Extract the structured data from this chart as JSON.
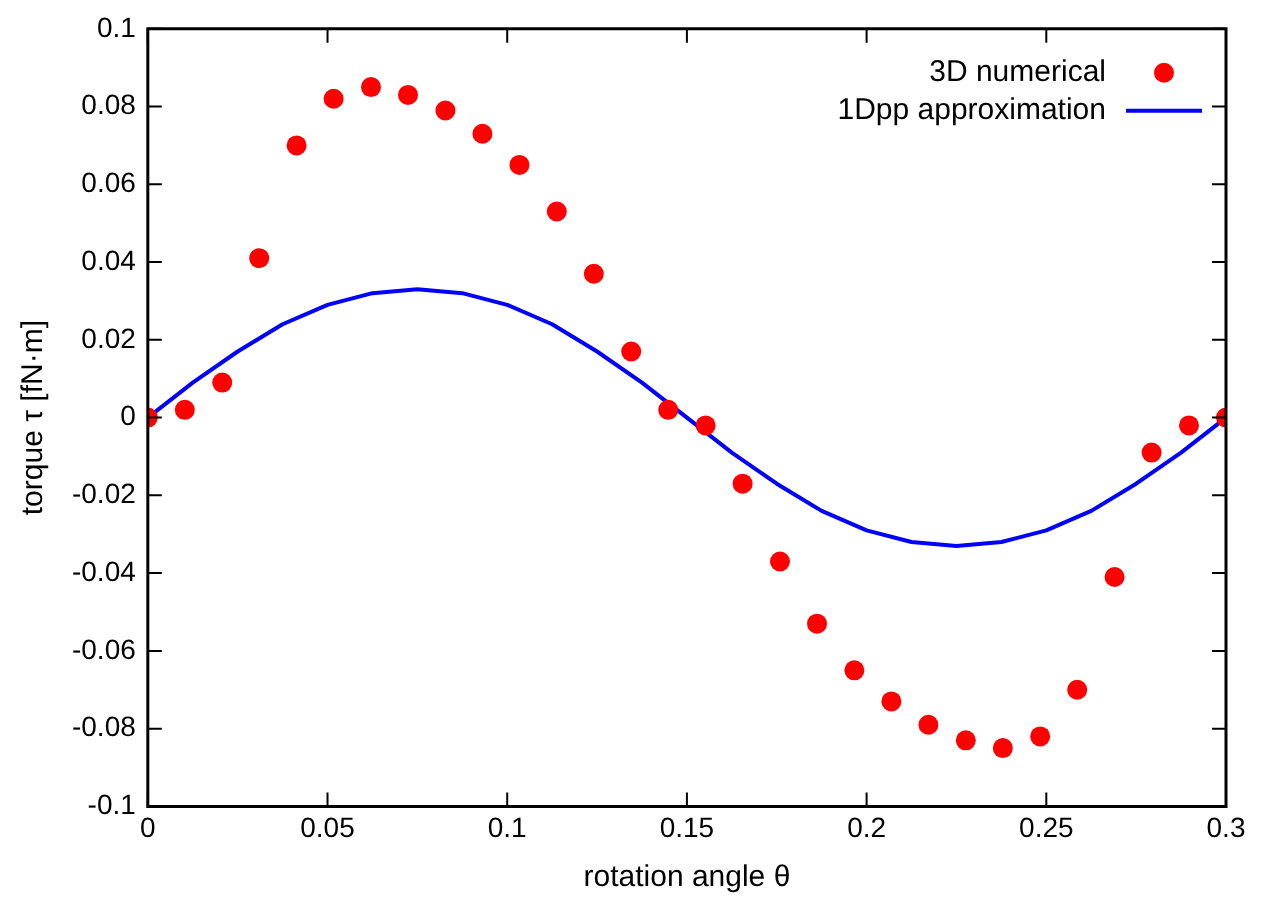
{
  "chart_data": {
    "type": "scatter",
    "xlabel": "rotation angle θ",
    "ylabel": "torque τ [fN·m]",
    "xlim": [
      0,
      0.3
    ],
    "xticks": [
      0,
      0.05,
      0.1,
      0.15,
      0.2,
      0.25,
      0.3
    ],
    "ylim": [
      -0.1,
      0.1
    ],
    "yticks": [
      -0.1,
      -0.08,
      -0.06,
      -0.04,
      -0.02,
      0,
      0.02,
      0.04,
      0.06,
      0.08,
      0.1
    ],
    "grid": false,
    "legend": "top right",
    "series": [
      {
        "name": "3D numerical",
        "type": "scatter",
        "marker": "circle",
        "color": "#ff0000",
        "x": [
          0,
          0.0103,
          0.0207,
          0.031,
          0.0414,
          0.0517,
          0.0621,
          0.0724,
          0.0828,
          0.0931,
          0.1034,
          0.1138,
          0.1241,
          0.1345,
          0.1448,
          0.1552,
          0.1655,
          0.1759,
          0.1862,
          0.1966,
          0.2069,
          0.2172,
          0.2276,
          0.2379,
          0.2483,
          0.2586,
          0.269,
          0.2793,
          0.2897,
          0.3
        ],
        "values": [
          0,
          0.002,
          0.009,
          0.041,
          0.07,
          0.082,
          0.085,
          0.083,
          0.079,
          0.073,
          0.065,
          0.053,
          0.037,
          0.017,
          0.002,
          -0.002,
          -0.017,
          -0.037,
          -0.053,
          -0.065,
          -0.073,
          -0.079,
          -0.083,
          -0.085,
          -0.082,
          -0.07,
          -0.041,
          -0.009,
          -0.002,
          0
        ]
      },
      {
        "name": "1Dpp approximation",
        "type": "line",
        "marker": "none",
        "line_style": "solid",
        "color": "#0000ff",
        "x": [
          0,
          0.0125,
          0.025,
          0.0375,
          0.05,
          0.0625,
          0.075,
          0.0875,
          0.1,
          0.1125,
          0.125,
          0.1375,
          0.15,
          0.1625,
          0.175,
          0.1875,
          0.2,
          0.2125,
          0.225,
          0.2375,
          0.25,
          0.2625,
          0.275,
          0.2875,
          0.3
        ],
        "values": [
          0,
          0.009,
          0.017,
          0.024,
          0.029,
          0.032,
          0.033,
          0.032,
          0.029,
          0.024,
          0.017,
          0.009,
          0,
          -0.009,
          -0.017,
          -0.024,
          -0.029,
          -0.032,
          -0.033,
          -0.032,
          -0.029,
          -0.024,
          -0.017,
          -0.009,
          0
        ]
      }
    ]
  }
}
